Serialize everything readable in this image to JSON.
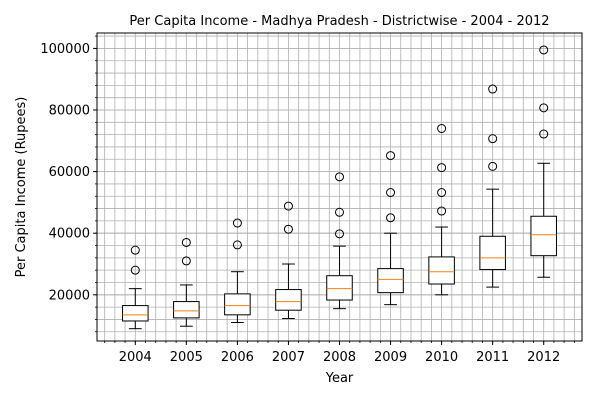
{
  "chart_data": {
    "type": "box",
    "title": "Per Capita Income - Madhya Pradesh - Districtwise - 2004 - 2012",
    "xlabel": "Year",
    "ylabel": "Per Capita Income (Rupees)",
    "ylim": [
      5000,
      105000
    ],
    "yticks": [
      20000,
      40000,
      60000,
      80000,
      100000
    ],
    "ytick_labels": [
      "20000",
      "40000",
      "60000",
      "80000",
      "100000"
    ],
    "grid": true,
    "categories": [
      "2004",
      "2005",
      "2006",
      "2007",
      "2008",
      "2009",
      "2010",
      "2011",
      "2012"
    ],
    "boxes": [
      {
        "whisker_low": 9000,
        "q1": 11500,
        "median": 13500,
        "q3": 16500,
        "whisker_high": 22000,
        "outliers": [
          28000,
          34500
        ]
      },
      {
        "whisker_low": 9800,
        "q1": 12500,
        "median": 14800,
        "q3": 17800,
        "whisker_high": 23200,
        "outliers": [
          31000,
          37000
        ]
      },
      {
        "whisker_low": 11000,
        "q1": 13500,
        "median": 16500,
        "q3": 20300,
        "whisker_high": 27500,
        "outliers": [
          36200,
          43300
        ]
      },
      {
        "whisker_low": 12300,
        "q1": 15000,
        "median": 17800,
        "q3": 21700,
        "whisker_high": 30000,
        "outliers": [
          41300,
          48800
        ]
      },
      {
        "whisker_low": 15500,
        "q1": 18300,
        "median": 22000,
        "q3": 26200,
        "whisker_high": 35800,
        "outliers": [
          39800,
          46800,
          58300
        ]
      },
      {
        "whisker_low": 16800,
        "q1": 20700,
        "median": 25000,
        "q3": 28500,
        "whisker_high": 40000,
        "outliers": [
          45000,
          53200,
          65200
        ]
      },
      {
        "whisker_low": 20000,
        "q1": 23500,
        "median": 27500,
        "q3": 32300,
        "whisker_high": 42000,
        "outliers": [
          47200,
          53200,
          61300,
          74000
        ]
      },
      {
        "whisker_low": 22500,
        "q1": 28200,
        "median": 32000,
        "q3": 39000,
        "whisker_high": 54300,
        "outliers": [
          61700,
          70700,
          86800
        ]
      },
      {
        "whisker_low": 25700,
        "q1": 32700,
        "median": 39500,
        "q3": 45500,
        "whisker_high": 62700,
        "outliers": [
          72200,
          80700,
          99500
        ]
      }
    ],
    "colors": {
      "box": "#000000",
      "median": "#ff7f0e",
      "grid": "#b0b0b0"
    }
  }
}
